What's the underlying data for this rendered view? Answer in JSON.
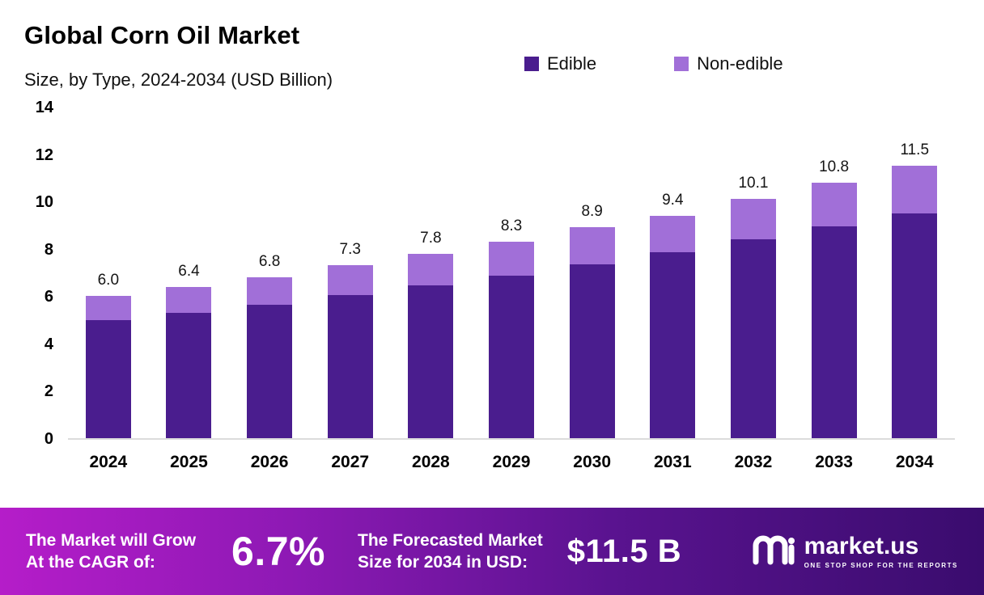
{
  "header": {
    "title": "Global Corn Oil Market",
    "subtitle": "Size, by Type, 2024-2034 (USD Billion)"
  },
  "legend": [
    {
      "label": "Edible",
      "color": "#4a1d8e"
    },
    {
      "label": "Non-edible",
      "color": "#a16fd8"
    }
  ],
  "chart_data": {
    "type": "bar",
    "stacked": true,
    "title": "Global Corn Oil Market Size, by Type, 2024-2034 (USD Billion)",
    "categories": [
      "2024",
      "2025",
      "2026",
      "2027",
      "2028",
      "2029",
      "2030",
      "2031",
      "2032",
      "2033",
      "2034"
    ],
    "series": [
      {
        "name": "Edible",
        "color": "#4a1d8e",
        "values": [
          5.0,
          5.3,
          5.65,
          6.05,
          6.45,
          6.85,
          7.35,
          7.85,
          8.4,
          8.95,
          9.5
        ]
      },
      {
        "name": "Non-edible",
        "color": "#a16fd8",
        "values": [
          1.0,
          1.1,
          1.15,
          1.25,
          1.35,
          1.45,
          1.55,
          1.55,
          1.7,
          1.85,
          2.0
        ]
      }
    ],
    "totals": [
      6.0,
      6.4,
      6.8,
      7.3,
      7.8,
      8.3,
      8.9,
      9.4,
      10.1,
      10.8,
      11.5
    ],
    "total_labels": [
      "6.0",
      "6.4",
      "6.8",
      "7.3",
      "7.8",
      "8.3",
      "8.9",
      "9.4",
      "10.1",
      "10.8",
      "11.5"
    ],
    "xlabel": "",
    "ylabel": "",
    "ylim": [
      0,
      14
    ],
    "yticks": [
      0,
      2,
      4,
      6,
      8,
      10,
      12,
      14
    ],
    "grid": false,
    "legend_position": "top"
  },
  "footer": {
    "cagr_label_line1": "The Market will Grow",
    "cagr_label_line2": "At the CAGR of:",
    "cagr_value": "6.7%",
    "forecast_label_line1": "The Forecasted Market",
    "forecast_label_line2": "Size for 2034 in USD:",
    "forecast_value": "$11.5 B",
    "brand": "market.us",
    "tagline": "ONE STOP SHOP FOR THE REPORTS"
  }
}
